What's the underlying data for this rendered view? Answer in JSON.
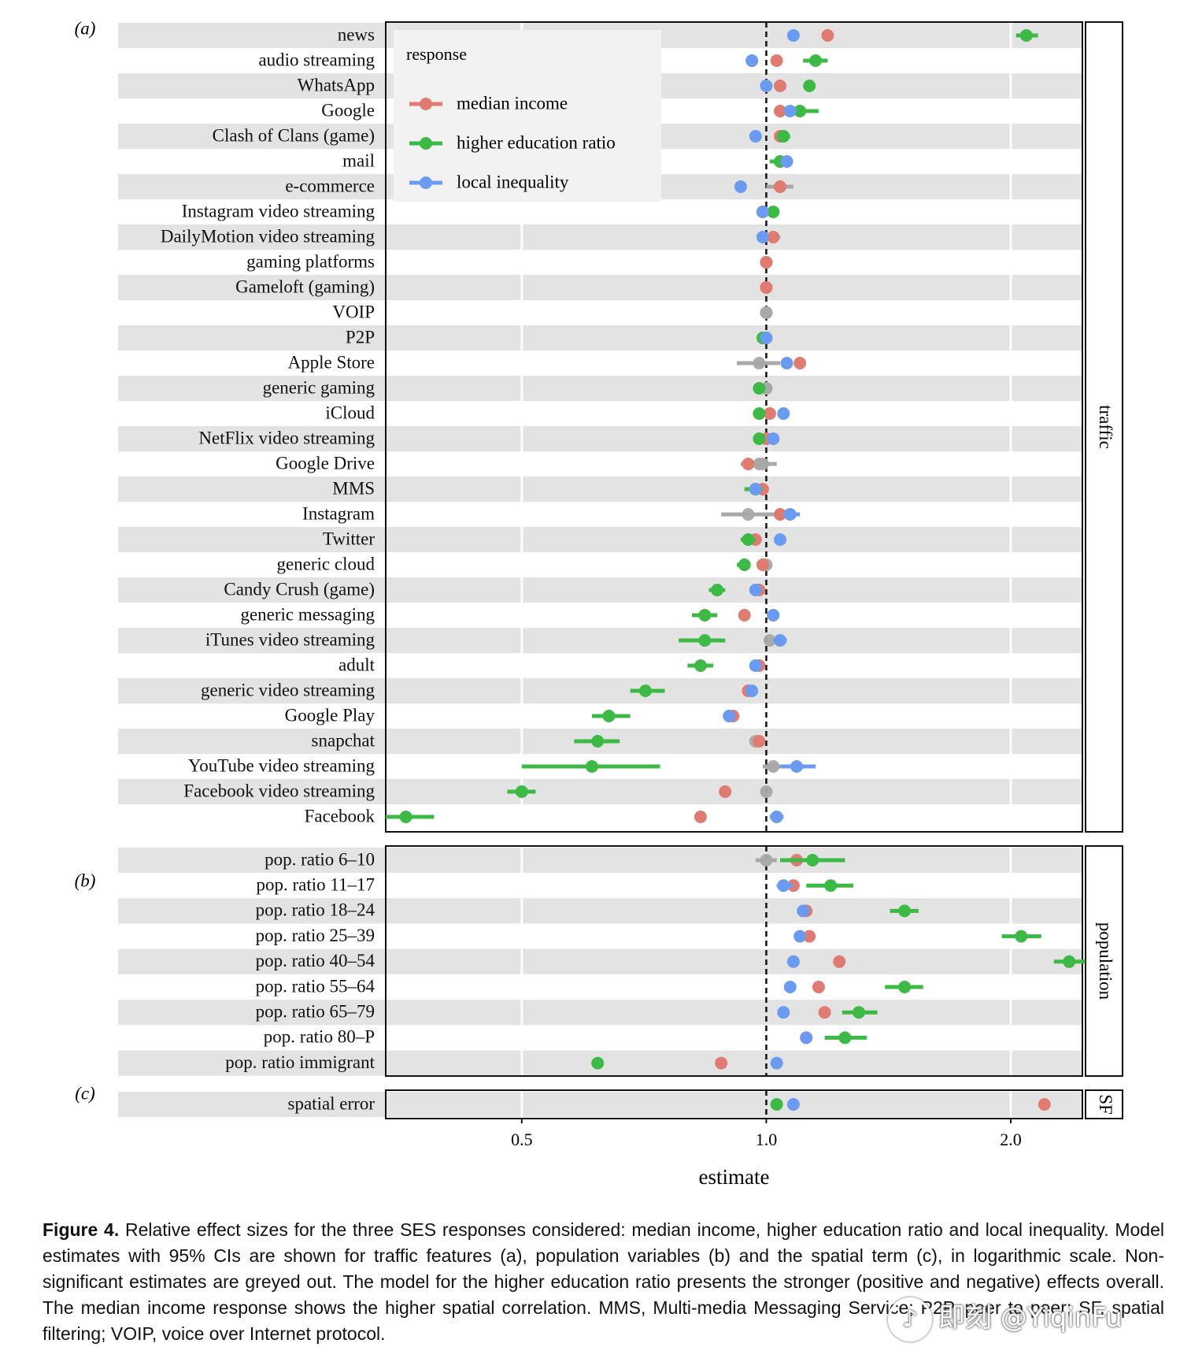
{
  "chart_data": {
    "type": "scatter",
    "subtype": "forest-plot",
    "xscale": "log",
    "xlim": [
      0.34,
      2.45
    ],
    "xlabel": "estimate",
    "xticks": [
      {
        "value": 0.5,
        "label": "0.5"
      },
      {
        "value": 1.0,
        "label": "1.0"
      },
      {
        "value": 2.0,
        "label": "2.0"
      }
    ],
    "reference_line": 1.0,
    "grid": true,
    "legend": {
      "title": "response",
      "placement": "top-left inside panel (a)",
      "entries": [
        {
          "key": "income",
          "label": "median income",
          "color": "#E07B72"
        },
        {
          "key": "edu",
          "label": "higher education ratio",
          "color": "#3DBA46"
        },
        {
          "key": "ineq",
          "label": "local inequality",
          "color": "#6A9BF0"
        }
      ]
    },
    "colors": {
      "income": "#E07B72",
      "edu": "#3DBA46",
      "ineq": "#6A9BF0",
      "nonsig": "#A8A8A8",
      "band": "#E3E3E3"
    },
    "panels": [
      {
        "tag": "(a)",
        "strip": "traffic",
        "rows": [
          {
            "label": "news",
            "income": [
              1.19,
              null,
              null,
              true
            ],
            "edu": [
              2.09,
              2.03,
              2.16,
              true
            ],
            "ineq": [
              1.08,
              null,
              null,
              true
            ]
          },
          {
            "label": "audio streaming",
            "income": [
              1.03,
              null,
              null,
              true
            ],
            "edu": [
              1.15,
              1.11,
              1.19,
              true
            ],
            "ineq": [
              0.96,
              null,
              null,
              true
            ]
          },
          {
            "label": "WhatsApp",
            "income": [
              1.04,
              null,
              null,
              true
            ],
            "edu": [
              1.13,
              null,
              null,
              true
            ],
            "ineq": [
              1.0,
              null,
              null,
              true
            ]
          },
          {
            "label": "Google",
            "income": [
              1.04,
              null,
              null,
              true
            ],
            "edu": [
              1.1,
              1.06,
              1.16,
              true
            ],
            "ineq": [
              1.07,
              null,
              null,
              true
            ]
          },
          {
            "label": "Clash of Clans (game)",
            "income": [
              1.04,
              null,
              null,
              true
            ],
            "edu": [
              1.05,
              1.03,
              1.07,
              true
            ],
            "ineq": [
              0.97,
              null,
              null,
              true
            ]
          },
          {
            "label": "mail",
            "income": [
              1.04,
              null,
              null,
              true
            ],
            "edu": [
              1.04,
              1.01,
              1.07,
              true
            ],
            "ineq": [
              1.06,
              null,
              null,
              true
            ]
          },
          {
            "label": "e-commerce",
            "income": [
              1.04,
              null,
              null,
              true
            ],
            "edu": [
              1.04,
              1.0,
              1.08,
              false
            ],
            "ineq": [
              0.93,
              null,
              null,
              true
            ]
          },
          {
            "label": "Instagram video streaming",
            "income": [
              0.99,
              null,
              null,
              true
            ],
            "edu": [
              1.02,
              null,
              null,
              true
            ],
            "ineq": [
              0.99,
              null,
              null,
              true
            ]
          },
          {
            "label": "DailyMotion video streaming",
            "income": [
              1.02,
              null,
              null,
              true
            ],
            "edu": [
              1.02,
              1.0,
              1.04,
              false
            ],
            "ineq": [
              0.99,
              null,
              null,
              true
            ]
          },
          {
            "label": "gaming platforms",
            "income": [
              1.0,
              null,
              null,
              true
            ],
            "edu": [
              1.0,
              null,
              null,
              false
            ],
            "ineq": [
              1.0,
              null,
              null,
              false
            ]
          },
          {
            "label": "Gameloft (gaming)",
            "income": [
              1.0,
              null,
              null,
              true
            ],
            "edu": [
              1.0,
              null,
              null,
              false
            ],
            "ineq": [
              1.0,
              null,
              null,
              false
            ]
          },
          {
            "label": "VOIP",
            "income": [
              1.0,
              null,
              null,
              false
            ],
            "edu": [
              1.0,
              null,
              null,
              false
            ],
            "ineq": [
              1.0,
              null,
              null,
              false
            ]
          },
          {
            "label": "P2P",
            "income": [
              1.0,
              null,
              null,
              false
            ],
            "edu": [
              0.99,
              null,
              null,
              true
            ],
            "ineq": [
              1.0,
              null,
              null,
              true
            ]
          },
          {
            "label": "Apple Store",
            "income": [
              1.1,
              null,
              null,
              true
            ],
            "edu": [
              0.98,
              0.92,
              1.04,
              false
            ],
            "ineq": [
              1.06,
              null,
              null,
              true
            ]
          },
          {
            "label": "generic gaming",
            "income": [
              1.0,
              null,
              null,
              false
            ],
            "edu": [
              0.98,
              null,
              null,
              true
            ],
            "ineq": [
              1.0,
              null,
              null,
              false
            ]
          },
          {
            "label": "iCloud",
            "income": [
              1.01,
              null,
              null,
              true
            ],
            "edu": [
              0.98,
              null,
              null,
              true
            ],
            "ineq": [
              1.05,
              null,
              null,
              true
            ]
          },
          {
            "label": "NetFlix video streaming",
            "income": [
              1.0,
              null,
              null,
              true
            ],
            "edu": [
              0.98,
              null,
              null,
              true
            ],
            "ineq": [
              1.02,
              null,
              null,
              true
            ]
          },
          {
            "label": "Google Drive",
            "income": [
              0.95,
              null,
              null,
              true
            ],
            "edu": [
              0.98,
              0.93,
              1.03,
              false
            ],
            "ineq": [
              0.99,
              null,
              null,
              false
            ]
          },
          {
            "label": "MMS",
            "income": [
              0.99,
              null,
              null,
              true
            ],
            "edu": [
              0.97,
              0.94,
              0.99,
              true
            ],
            "ineq": [
              0.97,
              null,
              null,
              true
            ]
          },
          {
            "label": "Instagram",
            "income": [
              1.04,
              null,
              null,
              true
            ],
            "edu": [
              0.95,
              0.88,
              1.03,
              false
            ],
            "ineq": [
              1.07,
              1.05,
              1.1,
              true
            ]
          },
          {
            "label": "Twitter",
            "income": [
              0.97,
              null,
              null,
              true
            ],
            "edu": [
              0.95,
              0.93,
              0.97,
              true
            ],
            "ineq": [
              1.04,
              null,
              null,
              true
            ]
          },
          {
            "label": "generic cloud",
            "income": [
              0.99,
              null,
              null,
              true
            ],
            "edu": [
              0.94,
              0.92,
              0.95,
              true
            ],
            "ineq": [
              1.0,
              null,
              null,
              false
            ]
          },
          {
            "label": "Candy Crush (game)",
            "income": [
              0.98,
              null,
              null,
              true
            ],
            "edu": [
              0.87,
              0.85,
              0.89,
              true
            ],
            "ineq": [
              0.97,
              null,
              null,
              true
            ]
          },
          {
            "label": "generic messaging",
            "income": [
              0.94,
              null,
              null,
              true
            ],
            "edu": [
              0.84,
              0.81,
              0.87,
              true
            ],
            "ineq": [
              1.02,
              null,
              null,
              true
            ]
          },
          {
            "label": "iTunes video streaming",
            "income": [
              1.01,
              null,
              null,
              false
            ],
            "edu": [
              0.84,
              0.78,
              0.89,
              true
            ],
            "ineq": [
              1.04,
              1.02,
              1.06,
              true
            ]
          },
          {
            "label": "adult",
            "income": [
              0.98,
              null,
              null,
              true
            ],
            "edu": [
              0.83,
              0.8,
              0.86,
              true
            ],
            "ineq": [
              0.97,
              null,
              null,
              true
            ]
          },
          {
            "label": "generic video streaming",
            "income": [
              0.95,
              null,
              null,
              true
            ],
            "edu": [
              0.71,
              0.68,
              0.75,
              true
            ],
            "ineq": [
              0.96,
              null,
              null,
              true
            ]
          },
          {
            "label": "Google Play",
            "income": [
              0.91,
              null,
              null,
              true
            ],
            "edu": [
              0.64,
              0.61,
              0.68,
              true
            ],
            "ineq": [
              0.9,
              null,
              null,
              true
            ]
          },
          {
            "label": "snapchat",
            "income": [
              0.98,
              null,
              null,
              true
            ],
            "edu": [
              0.62,
              0.58,
              0.66,
              true
            ],
            "ineq": [
              0.97,
              null,
              null,
              false
            ]
          },
          {
            "label": "YouTube video streaming",
            "income": [
              1.02,
              0.99,
              1.05,
              false
            ],
            "edu": [
              0.61,
              0.5,
              0.74,
              true
            ],
            "ineq": [
              1.09,
              1.04,
              1.15,
              true
            ]
          },
          {
            "label": "Facebook video streaming",
            "income": [
              0.89,
              null,
              null,
              true
            ],
            "edu": [
              0.5,
              0.48,
              0.52,
              true
            ],
            "ineq": [
              1.0,
              null,
              null,
              false
            ]
          },
          {
            "label": "Facebook",
            "income": [
              0.83,
              null,
              null,
              true
            ],
            "edu": [
              0.36,
              0.34,
              0.39,
              true
            ],
            "ineq": [
              1.03,
              1.01,
              1.05,
              true
            ]
          }
        ]
      },
      {
        "tag": "(b)",
        "strip": "population",
        "rows": [
          {
            "label": "pop. ratio 6–10",
            "income": [
              1.09,
              null,
              null,
              true
            ],
            "edu": [
              1.14,
              1.04,
              1.25,
              true
            ],
            "ineq": [
              1.0,
              0.97,
              1.03,
              false
            ]
          },
          {
            "label": "pop. ratio 11–17",
            "income": [
              1.08,
              null,
              null,
              true
            ],
            "edu": [
              1.2,
              1.12,
              1.28,
              true
            ],
            "ineq": [
              1.05,
              1.03,
              1.08,
              true
            ]
          },
          {
            "label": "pop. ratio 18–24",
            "income": [
              1.12,
              null,
              null,
              true
            ],
            "edu": [
              1.48,
              1.42,
              1.54,
              true
            ],
            "ineq": [
              1.11,
              null,
              null,
              true
            ]
          },
          {
            "label": "pop. ratio 25–39",
            "income": [
              1.13,
              null,
              null,
              true
            ],
            "edu": [
              2.06,
              1.95,
              2.18,
              true
            ],
            "ineq": [
              1.1,
              null,
              null,
              true
            ]
          },
          {
            "label": "pop. ratio 40–54",
            "income": [
              1.23,
              null,
              null,
              true
            ],
            "edu": [
              2.36,
              2.26,
              2.47,
              true
            ],
            "ineq": [
              1.08,
              null,
              null,
              true
            ]
          },
          {
            "label": "pop. ratio 55–64",
            "income": [
              1.16,
              null,
              null,
              true
            ],
            "edu": [
              1.48,
              1.4,
              1.56,
              true
            ],
            "ineq": [
              1.07,
              null,
              null,
              true
            ]
          },
          {
            "label": "pop. ratio 65–79",
            "income": [
              1.18,
              null,
              null,
              true
            ],
            "edu": [
              1.3,
              1.24,
              1.37,
              true
            ],
            "ineq": [
              1.05,
              null,
              null,
              true
            ]
          },
          {
            "label": "pop. ratio 80–P",
            "income": [
              1.12,
              null,
              null,
              true
            ],
            "edu": [
              1.25,
              1.18,
              1.33,
              true
            ],
            "ineq": [
              1.12,
              null,
              null,
              true
            ]
          },
          {
            "label": "pop. ratio immigrant",
            "income": [
              0.88,
              null,
              null,
              true
            ],
            "edu": [
              0.62,
              null,
              null,
              true
            ],
            "ineq": [
              1.03,
              null,
              null,
              true
            ]
          }
        ]
      },
      {
        "tag": "(c)",
        "strip": "SF",
        "rows": [
          {
            "label": "spatial error",
            "income": [
              2.2,
              null,
              null,
              true
            ],
            "edu": [
              1.03,
              null,
              null,
              true
            ],
            "ineq": [
              1.08,
              null,
              null,
              true
            ]
          }
        ]
      }
    ]
  },
  "caption": {
    "label": "Figure 4.",
    "text": "Relative effect sizes for the three SES responses considered: median income, higher education ratio and local inequality. Model estimates with 95% CIs are shown for traffic features (a), population variables (b) and the spatial term (c), in logarithmic scale. Non-significant estimates are greyed out. The model for the higher education ratio presents the stronger (positive and negative) effects overall. The median income response shows the higher spatial correlation. MMS, Multi-media Messaging Service; P2P, peer to peer; SF, spatial filtering; VOIP, voice over Internet protocol."
  },
  "watermark": {
    "icon": "music-note-icon",
    "text": "即刻 @YiqinFu"
  }
}
